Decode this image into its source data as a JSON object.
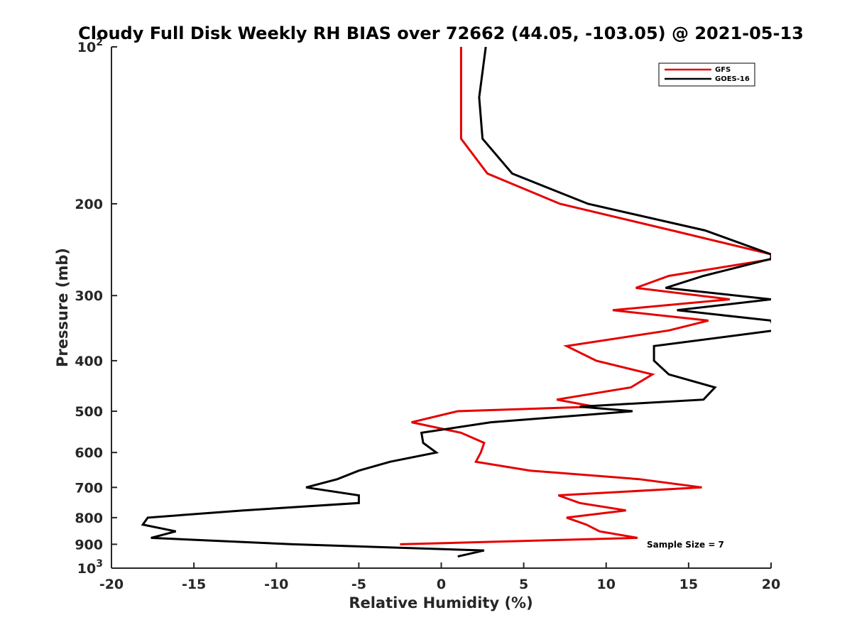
{
  "chart_data": {
    "type": "line",
    "title": "Cloudy Full Disk Weekly RH BIAS over 72662 (44.05, -103.05) @ 2021-05-13",
    "xlabel": "Relative Humidity (%)",
    "ylabel": "Pressure (mb)",
    "xlim": [
      -20,
      20
    ],
    "ylim": [
      100,
      1000
    ],
    "y_scale": "log",
    "y_reversed": true,
    "grid": false,
    "legend_position": "top-right",
    "annotation": "Sample Size = 7",
    "x_ticks": [
      "-20",
      "-15",
      "-10",
      "-5",
      "0",
      "5",
      "10",
      "15",
      "20"
    ],
    "y_ticks": [
      {
        "value": 100,
        "base": "10",
        "exp": "2"
      },
      {
        "value": 200,
        "label": "200"
      },
      {
        "value": 300,
        "label": "300"
      },
      {
        "value": 400,
        "label": "400"
      },
      {
        "value": 500,
        "label": "500"
      },
      {
        "value": 600,
        "label": "600"
      },
      {
        "value": 700,
        "label": "700"
      },
      {
        "value": 800,
        "label": "800"
      },
      {
        "value": 900,
        "label": "900"
      },
      {
        "value": 1000,
        "base": "10",
        "exp": "3"
      }
    ],
    "series": [
      {
        "name": "GFS",
        "color": "#e60000",
        "points": [
          [
            1.2,
            100
          ],
          [
            1.2,
            125
          ],
          [
            1.2,
            150
          ],
          [
            2.8,
            175
          ],
          [
            7.2,
            200
          ],
          [
            14.0,
            225
          ],
          [
            20.0,
            250
          ],
          [
            20.2,
            255
          ],
          [
            13.8,
            275
          ],
          [
            11.8,
            290
          ],
          [
            17.5,
            305
          ],
          [
            10.4,
            320
          ],
          [
            16.2,
            335
          ],
          [
            13.8,
            350
          ],
          [
            7.6,
            375
          ],
          [
            9.4,
            400
          ],
          [
            12.8,
            425
          ],
          [
            11.5,
            450
          ],
          [
            7.0,
            475
          ],
          [
            9.3,
            490
          ],
          [
            1.0,
            500
          ],
          [
            -1.8,
            525
          ],
          [
            1.2,
            550
          ],
          [
            2.6,
            575
          ],
          [
            2.4,
            600
          ],
          [
            2.1,
            625
          ],
          [
            5.4,
            650
          ],
          [
            12.0,
            675
          ],
          [
            15.8,
            700
          ],
          [
            7.1,
            725
          ],
          [
            8.4,
            750
          ],
          [
            11.2,
            775
          ],
          [
            7.6,
            800
          ],
          [
            8.8,
            825
          ],
          [
            9.6,
            850
          ],
          [
            11.9,
            875
          ],
          [
            -2.5,
            900
          ]
        ]
      },
      {
        "name": "GOES-16",
        "color": "#000000",
        "points": [
          [
            2.7,
            100
          ],
          [
            2.3,
            125
          ],
          [
            2.5,
            150
          ],
          [
            4.3,
            175
          ],
          [
            8.9,
            200
          ],
          [
            16.0,
            225
          ],
          [
            20.0,
            250
          ],
          [
            20.0,
            255
          ],
          [
            15.9,
            275
          ],
          [
            13.6,
            290
          ],
          [
            20.0,
            305
          ],
          [
            14.3,
            320
          ],
          [
            20.0,
            335
          ],
          [
            20.2,
            350
          ],
          [
            12.9,
            375
          ],
          [
            12.9,
            400
          ],
          [
            13.8,
            425
          ],
          [
            16.6,
            450
          ],
          [
            15.9,
            475
          ],
          [
            8.4,
            490
          ],
          [
            11.6,
            500
          ],
          [
            3.0,
            525
          ],
          [
            -1.2,
            550
          ],
          [
            -1.1,
            575
          ],
          [
            -0.3,
            600
          ],
          [
            -3.1,
            625
          ],
          [
            -5.0,
            650
          ],
          [
            -6.3,
            675
          ],
          [
            -8.2,
            700
          ],
          [
            -5.0,
            725
          ],
          [
            -5.0,
            750
          ],
          [
            -12.0,
            775
          ],
          [
            -17.8,
            800
          ],
          [
            -18.1,
            825
          ],
          [
            -16.1,
            850
          ],
          [
            -17.6,
            875
          ],
          [
            -9.0,
            900
          ],
          [
            2.6,
            925
          ],
          [
            1.0,
            950
          ]
        ]
      }
    ]
  }
}
